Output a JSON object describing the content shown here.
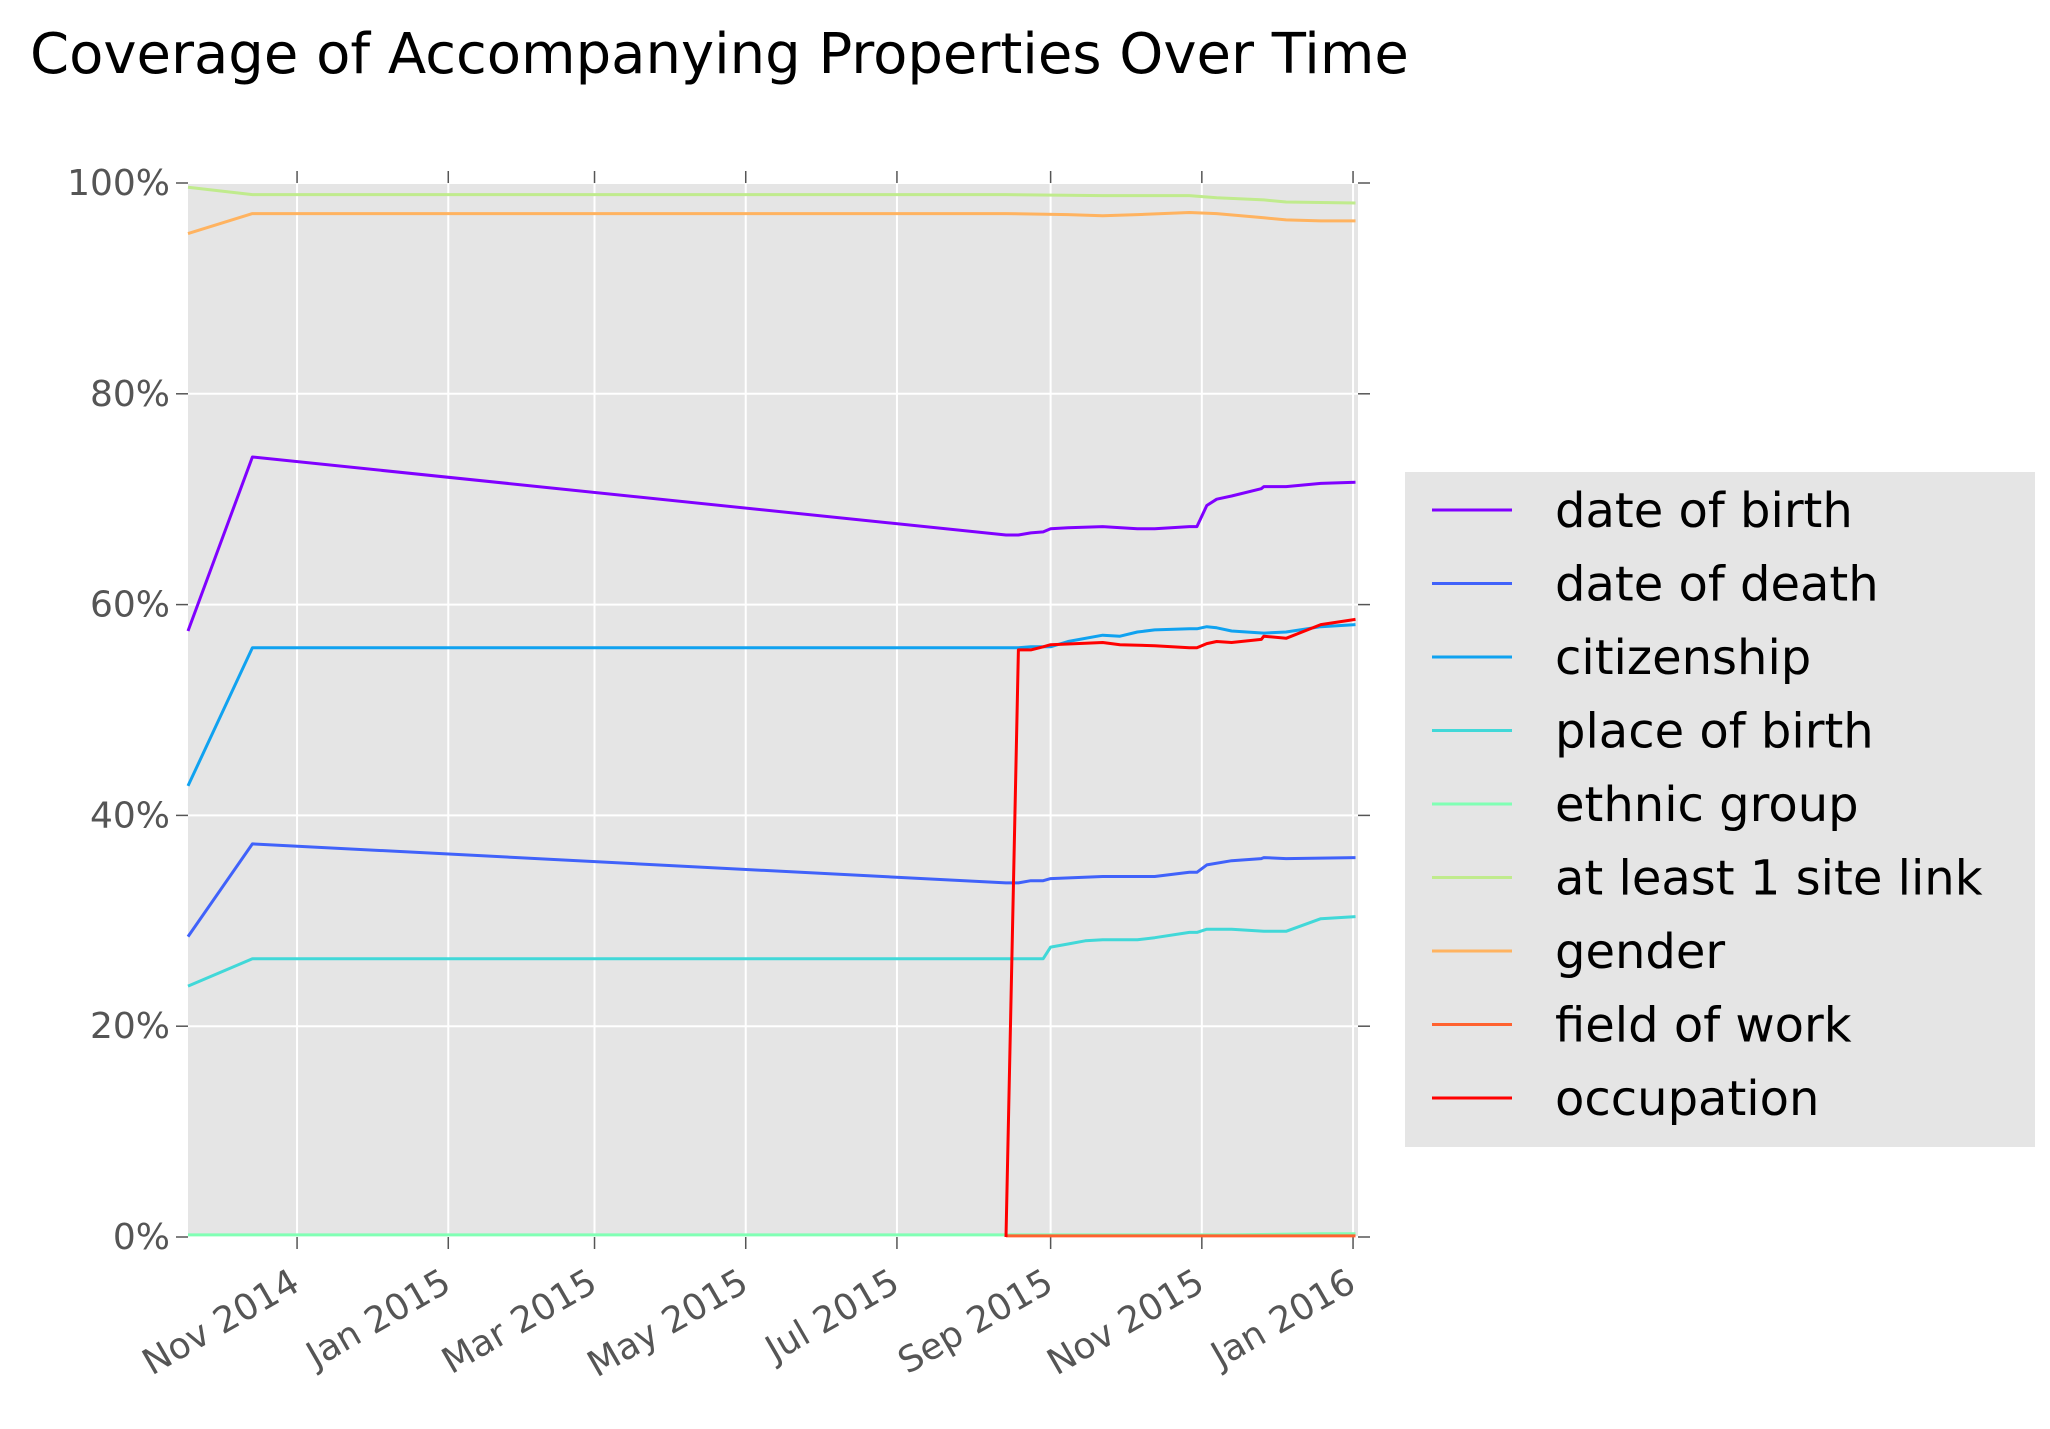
{
  "chart_data": {
    "type": "line",
    "title": "Coverage of Accompanying Properties Over Time",
    "xlabel": "",
    "ylabel": "",
    "x_range": [
      "2014-09-18",
      "2016-01-03"
    ],
    "ylim": [
      0,
      100
    ],
    "y_ticks": [
      0,
      20,
      40,
      60,
      80,
      100
    ],
    "y_tick_labels": [
      "0%",
      "20%",
      "40%",
      "60%",
      "80%",
      "100%"
    ],
    "x_ticks": [
      "2014-11-01",
      "2015-01-01",
      "2015-03-01",
      "2015-05-01",
      "2015-07-01",
      "2015-09-01",
      "2015-11-01",
      "2016-01-01"
    ],
    "x_tick_labels": [
      "Nov 2014",
      "Jan 2015",
      "Mar 2015",
      "May 2015",
      "Jul 2015",
      "Sep 2015",
      "Nov 2015",
      "Jan 2016"
    ],
    "grid": true,
    "legend_position": "right, outside plot",
    "background_color": "#e5e5e5",
    "series": [
      {
        "name": "date of birth",
        "color": "#8000ff",
        "points": [
          [
            "2014-09-18",
            57.5
          ],
          [
            "2014-10-14",
            74.0
          ],
          [
            "2015-08-14",
            66.6
          ],
          [
            "2015-08-19",
            66.6
          ],
          [
            "2015-08-24",
            66.8
          ],
          [
            "2015-08-29",
            66.9
          ],
          [
            "2015-09-01",
            67.2
          ],
          [
            "2015-09-08",
            67.3
          ],
          [
            "2015-09-22",
            67.4
          ],
          [
            "2015-10-06",
            67.2
          ],
          [
            "2015-10-13",
            67.2
          ],
          [
            "2015-10-27",
            67.4
          ],
          [
            "2015-10-30",
            67.4
          ],
          [
            "2015-11-03",
            69.4
          ],
          [
            "2015-11-07",
            70.0
          ],
          [
            "2015-11-13",
            70.3
          ],
          [
            "2015-11-25",
            71.0
          ],
          [
            "2015-11-26",
            71.2
          ],
          [
            "2015-12-05",
            71.2
          ],
          [
            "2015-12-19",
            71.5
          ],
          [
            "2016-01-02",
            71.6
          ]
        ]
      },
      {
        "name": "date of death",
        "color": "#4062fa",
        "points": [
          [
            "2014-09-18",
            28.5
          ],
          [
            "2014-10-14",
            37.3
          ],
          [
            "2015-08-14",
            33.6
          ],
          [
            "2015-08-19",
            33.6
          ],
          [
            "2015-08-24",
            33.8
          ],
          [
            "2015-08-29",
            33.8
          ],
          [
            "2015-09-01",
            34.0
          ],
          [
            "2015-09-22",
            34.2
          ],
          [
            "2015-10-13",
            34.2
          ],
          [
            "2015-10-27",
            34.6
          ],
          [
            "2015-10-30",
            34.6
          ],
          [
            "2015-11-03",
            35.3
          ],
          [
            "2015-11-13",
            35.7
          ],
          [
            "2015-11-25",
            35.9
          ],
          [
            "2015-11-26",
            36.0
          ],
          [
            "2015-12-05",
            35.9
          ],
          [
            "2016-01-02",
            36.0
          ]
        ]
      },
      {
        "name": "citizenship",
        "color": "#10a2f0",
        "points": [
          [
            "2014-09-18",
            42.8
          ],
          [
            "2014-10-14",
            55.9
          ],
          [
            "2015-08-14",
            55.9
          ],
          [
            "2015-08-19",
            55.9
          ],
          [
            "2015-08-24",
            56.0
          ],
          [
            "2015-09-01",
            56.0
          ],
          [
            "2015-09-08",
            56.5
          ],
          [
            "2015-09-22",
            57.1
          ],
          [
            "2015-09-29",
            57.0
          ],
          [
            "2015-10-06",
            57.4
          ],
          [
            "2015-10-13",
            57.6
          ],
          [
            "2015-10-27",
            57.7
          ],
          [
            "2015-10-30",
            57.7
          ],
          [
            "2015-11-03",
            57.9
          ],
          [
            "2015-11-07",
            57.8
          ],
          [
            "2015-11-13",
            57.5
          ],
          [
            "2015-11-26",
            57.3
          ],
          [
            "2015-12-05",
            57.4
          ],
          [
            "2015-12-19",
            57.9
          ],
          [
            "2016-01-02",
            58.1
          ]
        ]
      },
      {
        "name": "place of birth",
        "color": "#41d8d8",
        "points": [
          [
            "2014-09-18",
            23.8
          ],
          [
            "2014-10-14",
            26.4
          ],
          [
            "2015-08-14",
            26.4
          ],
          [
            "2015-08-29",
            26.4
          ],
          [
            "2015-09-01",
            27.5
          ],
          [
            "2015-09-08",
            27.8
          ],
          [
            "2015-09-15",
            28.1
          ],
          [
            "2015-09-22",
            28.2
          ],
          [
            "2015-10-06",
            28.2
          ],
          [
            "2015-10-13",
            28.4
          ],
          [
            "2015-10-27",
            28.9
          ],
          [
            "2015-10-30",
            28.9
          ],
          [
            "2015-11-03",
            29.2
          ],
          [
            "2015-11-13",
            29.2
          ],
          [
            "2015-11-26",
            29.0
          ],
          [
            "2015-12-05",
            29.0
          ],
          [
            "2015-12-19",
            30.2
          ],
          [
            "2016-01-02",
            30.4
          ]
        ]
      },
      {
        "name": "ethnic group",
        "color": "#80ffb4",
        "points": [
          [
            "2014-09-18",
            0.2
          ],
          [
            "2015-11-13",
            0.2
          ],
          [
            "2015-12-19",
            0.3
          ],
          [
            "2016-01-02",
            0.3
          ]
        ]
      },
      {
        "name": "at least 1 site link",
        "color": "#c0eb8d",
        "points": [
          [
            "2014-09-18",
            99.6
          ],
          [
            "2014-10-14",
            98.9
          ],
          [
            "2015-08-14",
            98.9
          ],
          [
            "2015-09-22",
            98.8
          ],
          [
            "2015-10-27",
            98.8
          ],
          [
            "2015-11-07",
            98.6
          ],
          [
            "2015-11-26",
            98.4
          ],
          [
            "2015-12-05",
            98.2
          ],
          [
            "2016-01-02",
            98.1
          ]
        ]
      },
      {
        "name": "gender",
        "color": "#ffb360",
        "points": [
          [
            "2014-09-18",
            95.2
          ],
          [
            "2014-10-14",
            97.1
          ],
          [
            "2015-08-14",
            97.1
          ],
          [
            "2015-09-08",
            97.0
          ],
          [
            "2015-09-22",
            96.9
          ],
          [
            "2015-10-06",
            97.0
          ],
          [
            "2015-10-27",
            97.2
          ],
          [
            "2015-11-07",
            97.1
          ],
          [
            "2015-11-26",
            96.7
          ],
          [
            "2015-12-05",
            96.5
          ],
          [
            "2015-12-19",
            96.4
          ],
          [
            "2016-01-02",
            96.4
          ]
        ]
      },
      {
        "name": "field of work",
        "color": "#ff6230",
        "points": [
          [
            "2015-08-14",
            0.1
          ],
          [
            "2016-01-02",
            0.1
          ]
        ]
      },
      {
        "name": "occupation",
        "color": "#ff0000",
        "points": [
          [
            "2015-08-14",
            0.0
          ],
          [
            "2015-08-19",
            55.7
          ],
          [
            "2015-08-24",
            55.7
          ],
          [
            "2015-08-29",
            56.0
          ],
          [
            "2015-09-01",
            56.2
          ],
          [
            "2015-09-22",
            56.4
          ],
          [
            "2015-09-29",
            56.2
          ],
          [
            "2015-10-13",
            56.1
          ],
          [
            "2015-10-27",
            55.9
          ],
          [
            "2015-10-30",
            55.9
          ],
          [
            "2015-11-03",
            56.3
          ],
          [
            "2015-11-07",
            56.5
          ],
          [
            "2015-11-13",
            56.4
          ],
          [
            "2015-11-25",
            56.7
          ],
          [
            "2015-11-26",
            57.0
          ],
          [
            "2015-12-05",
            56.8
          ],
          [
            "2015-12-19",
            58.1
          ],
          [
            "2016-01-02",
            58.6
          ]
        ]
      }
    ]
  }
}
